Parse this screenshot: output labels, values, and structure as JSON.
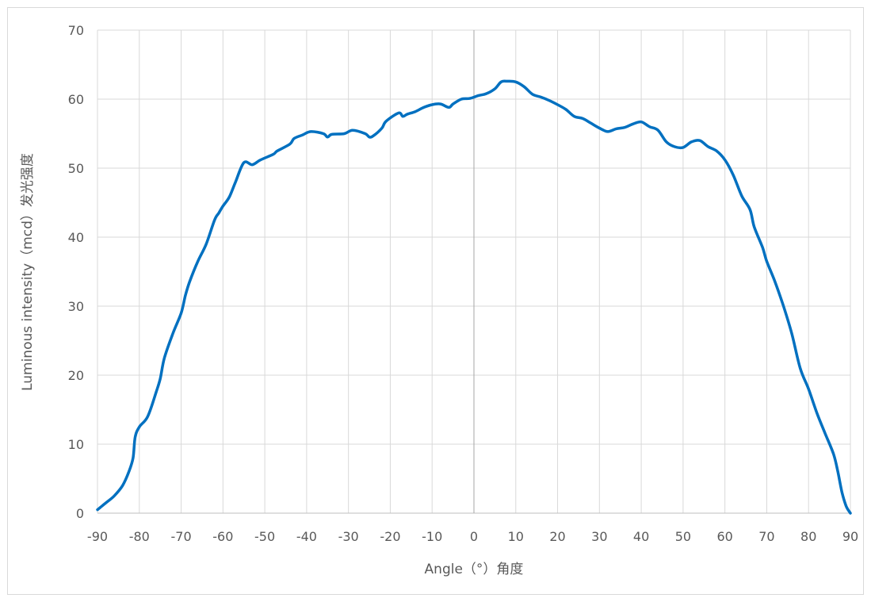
{
  "chart_data": {
    "type": "line",
    "title": "",
    "xlabel": "Angle（°）角度",
    "ylabel": "Luminous intensity（mcd）发光强度",
    "xlim": [
      -90,
      90
    ],
    "ylim": [
      0,
      70
    ],
    "x_ticks": [
      -90,
      -80,
      -70,
      -60,
      -50,
      -40,
      -30,
      -20,
      -10,
      0,
      10,
      20,
      30,
      40,
      50,
      60,
      70,
      80,
      90
    ],
    "y_ticks": [
      0,
      10,
      20,
      30,
      40,
      50,
      60,
      70
    ],
    "grid": true,
    "legend": "none",
    "series": [
      {
        "color": "#0070c0",
        "points": [
          [
            -90,
            0.5
          ],
          [
            -88,
            1.5
          ],
          [
            -86,
            2.5
          ],
          [
            -84,
            4
          ],
          [
            -82.5,
            6
          ],
          [
            -81.5,
            8
          ],
          [
            -81,
            11
          ],
          [
            -80,
            12.5
          ],
          [
            -78,
            14
          ],
          [
            -76,
            17.5
          ],
          [
            -75,
            19.5
          ],
          [
            -74,
            22.5
          ],
          [
            -72,
            26
          ],
          [
            -70,
            29
          ],
          [
            -69,
            31.5
          ],
          [
            -68,
            33.5
          ],
          [
            -66,
            36.5
          ],
          [
            -64,
            39
          ],
          [
            -62,
            42.5
          ],
          [
            -61,
            43.5
          ],
          [
            -60,
            44.5
          ],
          [
            -58.5,
            45.8
          ],
          [
            -57,
            48
          ],
          [
            -55,
            50.8
          ],
          [
            -53,
            50.5
          ],
          [
            -51,
            51.2
          ],
          [
            -48,
            52
          ],
          [
            -47,
            52.5
          ],
          [
            -44,
            53.5
          ],
          [
            -43,
            54.3
          ],
          [
            -41,
            54.8
          ],
          [
            -39,
            55.3
          ],
          [
            -36,
            55
          ],
          [
            -35,
            54.5
          ],
          [
            -34,
            54.9
          ],
          [
            -31,
            55
          ],
          [
            -29,
            55.5
          ],
          [
            -26,
            55
          ],
          [
            -25,
            54.5
          ],
          [
            -24,
            54.7
          ],
          [
            -22,
            55.8
          ],
          [
            -21,
            56.8
          ],
          [
            -18,
            58
          ],
          [
            -17,
            57.5
          ],
          [
            -16,
            57.8
          ],
          [
            -14,
            58.2
          ],
          [
            -12,
            58.8
          ],
          [
            -10,
            59.2
          ],
          [
            -8,
            59.3
          ],
          [
            -6,
            58.8
          ],
          [
            -5,
            59.3
          ],
          [
            -3,
            60
          ],
          [
            -1,
            60.1
          ],
          [
            1,
            60.5
          ],
          [
            3,
            60.8
          ],
          [
            5,
            61.5
          ],
          [
            6.5,
            62.5
          ],
          [
            8,
            62.6
          ],
          [
            10,
            62.5
          ],
          [
            12,
            61.8
          ],
          [
            14,
            60.7
          ],
          [
            16,
            60.3
          ],
          [
            18,
            59.8
          ],
          [
            20,
            59.2
          ],
          [
            22,
            58.5
          ],
          [
            24,
            57.5
          ],
          [
            26,
            57.2
          ],
          [
            28,
            56.5
          ],
          [
            30,
            55.8
          ],
          [
            32,
            55.3
          ],
          [
            34,
            55.7
          ],
          [
            36,
            55.9
          ],
          [
            38,
            56.4
          ],
          [
            40,
            56.7
          ],
          [
            42,
            56
          ],
          [
            44,
            55.5
          ],
          [
            46,
            53.8
          ],
          [
            48,
            53.1
          ],
          [
            50,
            53
          ],
          [
            52,
            53.8
          ],
          [
            54,
            54
          ],
          [
            56,
            53.1
          ],
          [
            58,
            52.5
          ],
          [
            60,
            51.2
          ],
          [
            62,
            49
          ],
          [
            64,
            46
          ],
          [
            66,
            44
          ],
          [
            67,
            41.5
          ],
          [
            69,
            38.5
          ],
          [
            70,
            36.5
          ],
          [
            72,
            33.5
          ],
          [
            74,
            30
          ],
          [
            76,
            26
          ],
          [
            78,
            21
          ],
          [
            80,
            18
          ],
          [
            82,
            14.5
          ],
          [
            84,
            11.5
          ],
          [
            86,
            8.5
          ],
          [
            87,
            6
          ],
          [
            88,
            3
          ],
          [
            89,
            1
          ],
          [
            90,
            0
          ]
        ]
      }
    ]
  }
}
